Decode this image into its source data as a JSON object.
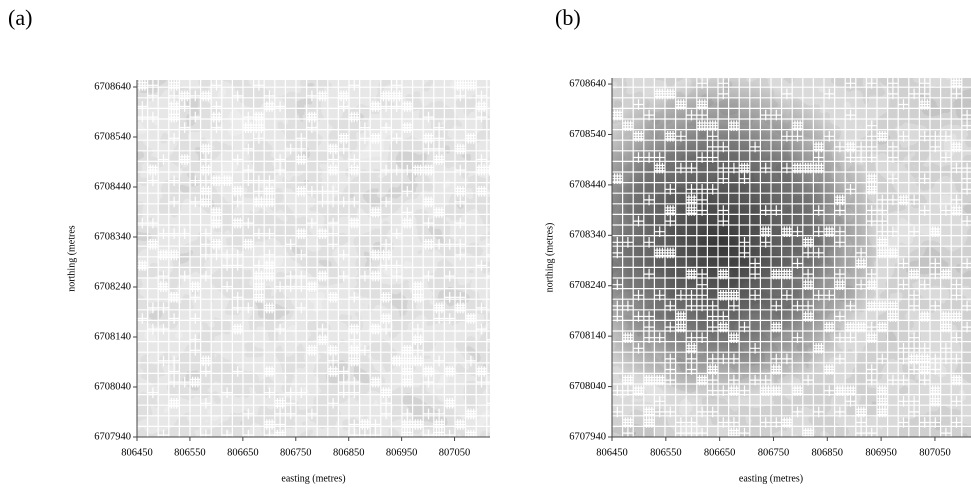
{
  "chart_data": [
    {
      "type": "image",
      "panel": "(a)",
      "xlabel": "easting (metres)",
      "ylabel": "northing (metres",
      "xlim": [
        806450,
        807117
      ],
      "ylim": [
        6707940,
        6708654
      ],
      "xticks": [
        806450,
        806550,
        806650,
        806750,
        806850,
        806950,
        807050
      ],
      "yticks": [
        6707940,
        6708040,
        6708140,
        6708240,
        6708340,
        6708440,
        6708540,
        6708640
      ]
    },
    {
      "type": "image",
      "panel": "(b)",
      "xlabel": "easting (metres)",
      "ylabel": "northing (metres)",
      "xlim": [
        806450,
        807117
      ],
      "ylim": [
        6707940,
        6708652
      ],
      "xticks": [
        806450,
        806550,
        806650,
        806750,
        806850,
        806950,
        807050
      ],
      "yticks": [
        6707940,
        6708040,
        6708140,
        6708240,
        6708340,
        6708440,
        6708540,
        6708640
      ]
    }
  ]
}
